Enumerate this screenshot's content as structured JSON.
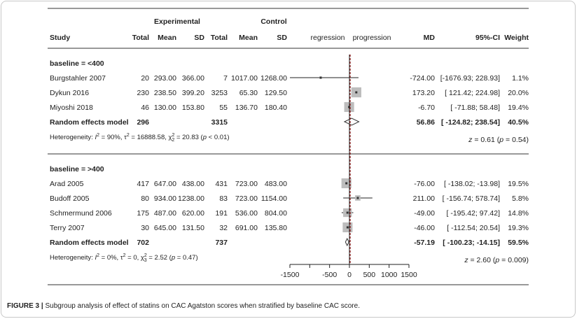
{
  "header": {
    "experimental": "Experimental",
    "control": "Control",
    "columns": [
      "Study",
      "Total",
      "Mean",
      "SD",
      "Total",
      "Mean",
      "SD",
      "regression",
      "progression",
      "MD",
      "95%-CI",
      "Weight"
    ]
  },
  "caption": {
    "label": "FIGURE 3 |",
    "text": " Subgroup analysis of effect of statins on CAC Agatston scores when stratified by baseline CAC score."
  },
  "chart_data": {
    "type": "forest",
    "xlim": [
      -1500,
      1500
    ],
    "xticks": [
      -1500,
      -1000,
      -500,
      0,
      500,
      1000,
      1500
    ],
    "xtick_labels": [
      "-1500",
      "",
      "-500",
      "0",
      "500",
      "1000",
      "1500"
    ],
    "reference_line": 0,
    "pooled_line": 0,
    "colors": {
      "box": "#bdbdbd",
      "ref_line": "#8b1010",
      "diamond": "#ffffff"
    },
    "subgroups": [
      {
        "label": "baseline = <400",
        "studies": [
          {
            "study": "Burgstahler 2007",
            "e_total": "20",
            "e_mean": "293.00",
            "e_sd": "366.00",
            "c_total": "7",
            "c_mean": "1017.00",
            "c_sd": "1268.00",
            "md_text": "-724.00",
            "ci_text": "[-1676.93; 228.93]",
            "weight_text": "1.1%",
            "md": -724.0,
            "lo": -1676.93,
            "hi": 228.93,
            "weight": 1.1
          },
          {
            "study": "Dykun 2016",
            "e_total": "230",
            "e_mean": "238.50",
            "e_sd": "399.20",
            "c_total": "3253",
            "c_mean": "65.30",
            "c_sd": "129.50",
            "md_text": "173.20",
            "ci_text": "[ 121.42; 224.98]",
            "weight_text": "20.0%",
            "md": 173.2,
            "lo": 121.42,
            "hi": 224.98,
            "weight": 20.0
          },
          {
            "study": "Miyoshi 2018",
            "e_total": "46",
            "e_mean": "130.00",
            "e_sd": "153.80",
            "c_total": "55",
            "c_mean": "136.70",
            "c_sd": "180.40",
            "md_text": "-6.70",
            "ci_text": "[ -71.88; 58.48]",
            "weight_text": "19.4%",
            "md": -6.7,
            "lo": -71.88,
            "hi": 58.48,
            "weight": 19.4
          }
        ],
        "pooled": {
          "label": "Random effects model",
          "e_total": "296",
          "c_total": "3315",
          "md_text": "56.86",
          "ci_text": "[ -124.82; 238.54]",
          "weight_text": "40.5%",
          "md": 56.86,
          "lo": -124.82,
          "hi": 238.54
        },
        "heterogeneity": {
          "i2": "90%",
          "tau2": "16888.58",
          "chi2": "20.83",
          "df": "2",
          "p": "< 0.01"
        },
        "z_test": {
          "z": "0.61",
          "p": "0.54"
        }
      },
      {
        "label": "baseline = >400",
        "studies": [
          {
            "study": "Arad 2005",
            "e_total": "417",
            "e_mean": "647.00",
            "e_sd": "438.00",
            "c_total": "431",
            "c_mean": "723.00",
            "c_sd": "483.00",
            "md_text": "-76.00",
            "ci_text": "[ -138.02; -13.98]",
            "weight_text": "19.5%",
            "md": -76.0,
            "lo": -138.02,
            "hi": -13.98,
            "weight": 19.5
          },
          {
            "study": "Budoff 2005",
            "e_total": "80",
            "e_mean": "934.00",
            "e_sd": "1238.00",
            "c_total": "83",
            "c_mean": "723.00",
            "c_sd": "1154.00",
            "md_text": "211.00",
            "ci_text": "[ -156.74; 578.74]",
            "weight_text": "5.8%",
            "md": 211.0,
            "lo": -156.74,
            "hi": 578.74,
            "weight": 5.8
          },
          {
            "study": "Schmermund 2006",
            "e_total": "175",
            "e_mean": "487.00",
            "e_sd": "620.00",
            "c_total": "191",
            "c_mean": "536.00",
            "c_sd": "804.00",
            "md_text": "-49.00",
            "ci_text": "[ -195.42; 97.42]",
            "weight_text": "14.8%",
            "md": -49.0,
            "lo": -195.42,
            "hi": 97.42,
            "weight": 14.8
          },
          {
            "study": "Terry 2007",
            "e_total": "30",
            "e_mean": "645.00",
            "e_sd": "131.50",
            "c_total": "32",
            "c_mean": "691.00",
            "c_sd": "135.80",
            "md_text": "-46.00",
            "ci_text": "[ -112.54; 20.54]",
            "weight_text": "19.3%",
            "md": -46.0,
            "lo": -112.54,
            "hi": 20.54,
            "weight": 19.3
          }
        ],
        "pooled": {
          "label": "Random effects model",
          "e_total": "702",
          "c_total": "737",
          "md_text": "-57.19",
          "ci_text": "[ -100.23; -14.15]",
          "weight_text": "59.5%",
          "md": -57.19,
          "lo": -100.23,
          "hi": -14.15
        },
        "heterogeneity": {
          "i2": "0%",
          "tau2": "0",
          "chi2": "2.52",
          "df": "3",
          "p": "= 0.47"
        },
        "z_test": {
          "z": "2.60",
          "p": "0.009"
        }
      }
    ]
  }
}
